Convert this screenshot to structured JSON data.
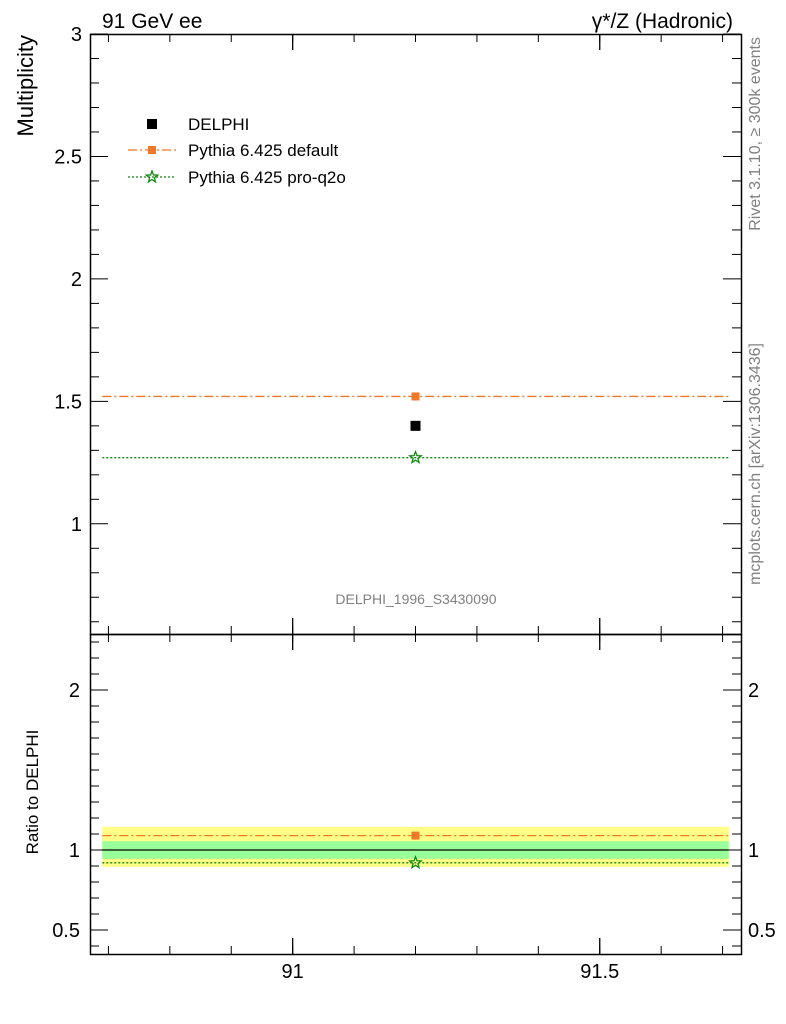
{
  "header": {
    "left": "91 GeV ee",
    "right": "γ*/Z (Hadronic)"
  },
  "side_text": {
    "rivet": "Rivet 3.1.10, ≥ 300k events",
    "source": "mcplots.cern.ch [arXiv:1306.3436]"
  },
  "analysis_id": "DELPHI_1996_S3430090",
  "colors": {
    "data": "#000000",
    "pythia_default": "#f0782a",
    "pythia_pro_q2o": "#118811",
    "band_inner": "#99ff99",
    "band_outer": "#ffff88"
  },
  "chart_data": [
    {
      "type": "scatter",
      "panel": "main",
      "ylabel": "Multiplicity",
      "xlim": [
        90.67,
        91.73
      ],
      "ylim": [
        0.55,
        3.0
      ],
      "x_ticks": [
        91,
        91.5
      ],
      "y_ticks": [
        1,
        1.5,
        2,
        2.5,
        3
      ],
      "y_tick_labels": [
        "1",
        "1.5",
        "2",
        "2.5",
        "3"
      ],
      "legend_position": "top-left",
      "series": [
        {
          "name": "DELPHI",
          "marker": "square",
          "x": [
            91.2
          ],
          "y": [
            1.4
          ]
        },
        {
          "name": "Pythia 6.425 default",
          "marker": "square",
          "line": "dash-dot",
          "x_range": [
            90.69,
            91.71
          ],
          "x": [
            91.2
          ],
          "y": [
            1.52
          ]
        },
        {
          "name": "Pythia 6.425 pro-q2o",
          "marker": "star",
          "line": "dotted",
          "x_range": [
            90.69,
            91.71
          ],
          "x": [
            91.2
          ],
          "y": [
            1.27
          ]
        }
      ]
    },
    {
      "type": "scatter",
      "panel": "ratio",
      "ylabel": "Ratio to DELPHI",
      "xlim": [
        90.67,
        91.73
      ],
      "ylim": [
        0.35,
        2.35
      ],
      "x_ticks": [
        91,
        91.5
      ],
      "x_tick_labels": [
        "91",
        "91.5"
      ],
      "y_ticks": [
        0.5,
        1,
        2
      ],
      "y_tick_labels": [
        "0.5",
        "1",
        "2"
      ],
      "bands": {
        "inner": [
          0.945,
          1.055
        ],
        "outer": [
          0.895,
          1.145
        ]
      },
      "series": [
        {
          "name": "DELPHI",
          "y": [
            1.0
          ]
        },
        {
          "name": "Pythia 6.425 default",
          "x": [
            91.2
          ],
          "y": [
            1.09
          ]
        },
        {
          "name": "Pythia 6.425 pro-q2o",
          "x": [
            91.2
          ],
          "y": [
            0.92
          ]
        }
      ]
    }
  ]
}
